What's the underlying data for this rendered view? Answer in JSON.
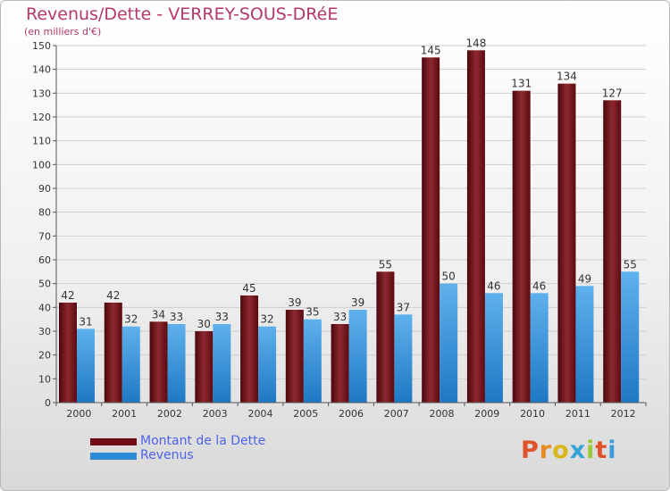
{
  "title": "Revenus/Dette - VERREY-SOUS-DRéE",
  "subtitle": "(en milliers d'€)",
  "logo": "Proxiti",
  "colors": {
    "dette": "#6e0e14",
    "revenus": "#2f8ad6",
    "grid": "#cfcfcf",
    "axis": "#555555",
    "title": "#b3386b",
    "legend_text": "#4e62e6"
  },
  "chart_data": {
    "type": "bar",
    "title": "Revenus/Dette - VERREY-SOUS-DRéE",
    "ylabel": "(en milliers d'€)",
    "xlabel": "",
    "categories": [
      "2000",
      "2001",
      "2002",
      "2003",
      "2004",
      "2005",
      "2006",
      "2007",
      "2008",
      "2009",
      "2010",
      "2011",
      "2012"
    ],
    "series": [
      {
        "name": "Montant de la Dette",
        "values": [
          42,
          42,
          34,
          30,
          45,
          39,
          33,
          55,
          145,
          148,
          131,
          134,
          127
        ]
      },
      {
        "name": "Revenus",
        "values": [
          31,
          32,
          33,
          33,
          32,
          35,
          39,
          37,
          50,
          46,
          46,
          49,
          55
        ]
      }
    ],
    "ylim": [
      0,
      150
    ],
    "yticks": [
      0,
      10,
      20,
      30,
      40,
      50,
      60,
      70,
      80,
      90,
      100,
      110,
      120,
      130,
      140,
      150
    ],
    "grid": true,
    "legend_position": "bottom-left"
  }
}
